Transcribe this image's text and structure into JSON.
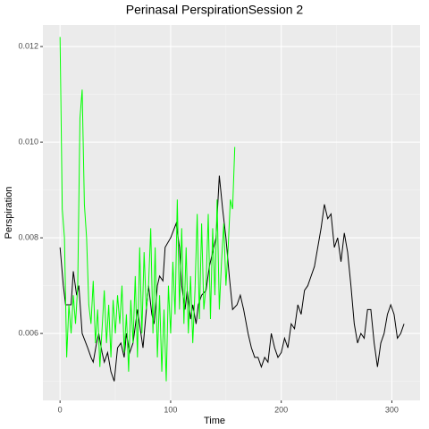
{
  "chart_data": {
    "type": "line",
    "title": "Perinasal PerspirationSession 2",
    "xlabel": "Time",
    "ylabel": "Perspiration",
    "xlim": [
      -15.5,
      325.5
    ],
    "xticks": [
      0,
      100,
      200,
      300
    ],
    "xminor": [
      50,
      150,
      250
    ],
    "ylim": [
      0.0046,
      0.01245
    ],
    "yticks": [
      0.006,
      0.008,
      {
        "value": 0.01,
        "label": "0.010"
      },
      0.012
    ],
    "yminor": [
      0.005,
      0.007,
      0.009,
      0.011
    ],
    "grid": true,
    "series": [
      {
        "color": "#000000",
        "x": [
          0,
          3,
          5,
          10,
          12,
          15,
          17,
          20,
          25,
          28,
          30,
          33,
          35,
          38,
          40,
          43,
          46,
          49,
          52,
          55,
          58,
          60,
          63,
          66,
          70,
          75,
          80,
          83,
          85,
          88,
          90,
          93,
          95,
          100,
          105,
          108,
          110,
          113,
          115,
          118,
          120,
          123,
          125,
          128,
          132,
          135,
          138,
          141,
          144,
          147,
          150,
          153,
          156,
          160,
          163,
          166,
          170,
          173,
          176,
          179,
          182,
          185,
          188,
          191,
          194,
          197,
          200,
          203,
          206,
          209,
          212,
          215,
          218,
          221,
          224,
          227,
          230,
          233,
          236,
          239,
          242,
          245,
          248,
          251,
          254,
          257,
          260,
          263,
          266,
          269,
          272,
          275,
          278,
          281,
          284,
          287,
          290,
          293,
          296,
          299,
          302,
          305,
          308,
          311
        ],
        "values": [
          0.0078,
          0.007,
          0.0066,
          0.0066,
          0.0073,
          0.0068,
          0.007,
          0.006,
          0.0057,
          0.0055,
          0.0054,
          0.0058,
          0.006,
          0.0056,
          0.0054,
          0.0056,
          0.0052,
          0.005,
          0.0057,
          0.0058,
          0.0055,
          0.006,
          0.0056,
          0.0058,
          0.0065,
          0.0057,
          0.007,
          0.0064,
          0.0062,
          0.007,
          0.0072,
          0.0071,
          0.0078,
          0.008,
          0.0083,
          0.0078,
          0.007,
          0.0065,
          0.0069,
          0.0063,
          0.0066,
          0.0062,
          0.0066,
          0.0068,
          0.0069,
          0.0074,
          0.0077,
          0.008,
          0.0093,
          0.0086,
          0.008,
          0.0072,
          0.0065,
          0.0066,
          0.0068,
          0.0065,
          0.006,
          0.0057,
          0.0055,
          0.0055,
          0.0053,
          0.0055,
          0.0054,
          0.006,
          0.0057,
          0.0055,
          0.0056,
          0.0059,
          0.0057,
          0.0062,
          0.0061,
          0.0066,
          0.0064,
          0.0069,
          0.007,
          0.0072,
          0.0074,
          0.0078,
          0.0082,
          0.0087,
          0.0084,
          0.0085,
          0.0078,
          0.008,
          0.0075,
          0.0081,
          0.0077,
          0.007,
          0.0062,
          0.0058,
          0.006,
          0.0059,
          0.0065,
          0.0065,
          0.0058,
          0.0053,
          0.0058,
          0.006,
          0.0064,
          0.0066,
          0.0064,
          0.0059,
          0.006,
          0.0062
        ]
      },
      {
        "color": "#00ff00",
        "x": [
          0,
          2,
          4,
          6,
          8,
          10,
          12,
          14,
          16,
          18,
          20,
          22,
          24,
          26,
          28,
          30,
          32,
          34,
          36,
          38,
          40,
          42,
          44,
          46,
          48,
          50,
          52,
          54,
          56,
          58,
          60,
          62,
          64,
          66,
          68,
          70,
          72,
          74,
          76,
          78,
          80,
          82,
          84,
          86,
          88,
          90,
          92,
          94,
          96,
          98,
          100,
          102,
          104,
          106,
          108,
          110,
          112,
          114,
          116,
          118,
          120,
          122,
          124,
          126,
          128,
          130,
          132,
          134,
          136,
          138,
          140,
          142,
          144,
          146,
          148,
          150,
          152,
          154,
          156,
          158
        ],
        "values": [
          0.0122,
          0.0086,
          0.008,
          0.0055,
          0.0066,
          0.006,
          0.0068,
          0.0062,
          0.007,
          0.0105,
          0.0111,
          0.0087,
          0.008,
          0.0066,
          0.0062,
          0.0071,
          0.0058,
          0.0065,
          0.0053,
          0.0061,
          0.0069,
          0.0058,
          0.0066,
          0.0055,
          0.0067,
          0.006,
          0.0068,
          0.0062,
          0.007,
          0.0056,
          0.0064,
          0.0052,
          0.0067,
          0.0058,
          0.0072,
          0.0055,
          0.0078,
          0.006,
          0.0077,
          0.0065,
          0.007,
          0.0082,
          0.006,
          0.0078,
          0.0055,
          0.0068,
          0.0052,
          0.0065,
          0.005,
          0.007,
          0.006,
          0.0075,
          0.0064,
          0.0088,
          0.0065,
          0.0082,
          0.0062,
          0.0078,
          0.006,
          0.0072,
          0.0058,
          0.0069,
          0.0085,
          0.0063,
          0.0083,
          0.0065,
          0.007,
          0.0085,
          0.0063,
          0.0082,
          0.0068,
          0.0088,
          0.0065,
          0.0075,
          0.0083,
          0.007,
          0.0078,
          0.0088,
          0.0086,
          0.0099
        ]
      }
    ]
  }
}
